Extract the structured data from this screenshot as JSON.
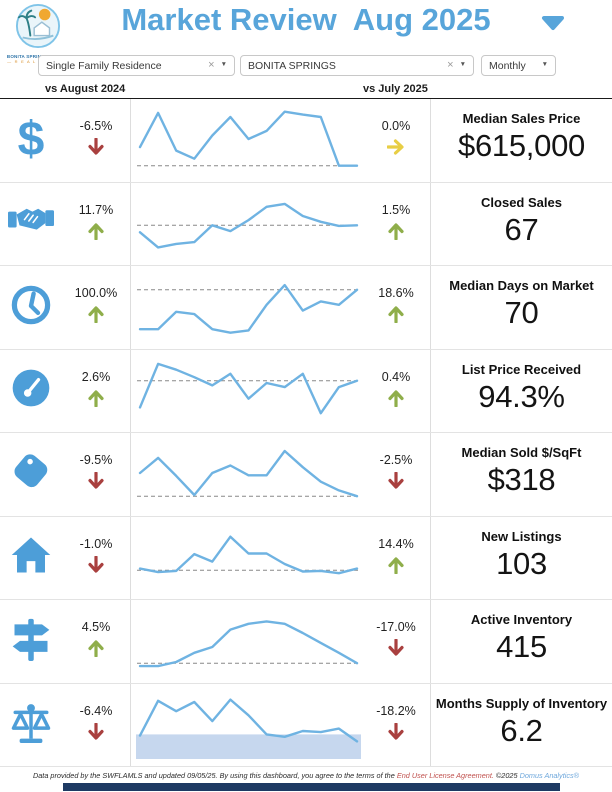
{
  "header": {
    "title": "Market Review  Aug 2025",
    "logo_org_line1": "BONITA SPRINGS ESTERO",
    "logo_org_line2": "— R E A L T O R S —"
  },
  "filters": {
    "property_type": {
      "value": "Single Family Residence",
      "clearable": true
    },
    "location": {
      "value": "BONITA SPRINGS",
      "clearable": true
    },
    "period": {
      "value": "Monthly",
      "clearable": false
    }
  },
  "columns": {
    "yoy_label": "vs August 2024",
    "mom_label": "vs July 2025"
  },
  "colors": {
    "accent_blue": "#58a5da",
    "icon_blue": "#4d9ed8",
    "spark_line": "#6fb3e2",
    "ref_gray": "#888888",
    "up_green": "#8fae4a",
    "down_red": "#a9403f",
    "flat_yellow": "#e8ce45",
    "band_blue": "#c6d7ee",
    "bottom_bar_navy": "#1e3a63",
    "link_red": "#c0504d",
    "link_blue": "#6fa8dc"
  },
  "rows": [
    {
      "icon": "dollar",
      "metric": "Median Sales Price",
      "value": "$615,000",
      "yoy": {
        "pct": "-6.5%",
        "dir": "down"
      },
      "mom": {
        "pct": "0.0%",
        "dir": "flat"
      },
      "spark": {
        "points": [
          0.36,
          0.95,
          0.3,
          0.16,
          0.56,
          0.88,
          0.5,
          0.64,
          0.97,
          0.92,
          0.88,
          0.04,
          0.04
        ],
        "ref": 0.04,
        "band": null
      }
    },
    {
      "icon": "handshake",
      "metric": "Closed Sales",
      "value": "67",
      "yoy": {
        "pct": "11.7%",
        "dir": "up"
      },
      "mom": {
        "pct": "1.5%",
        "dir": "up"
      },
      "spark": {
        "points": [
          0.34,
          0.08,
          0.14,
          0.17,
          0.46,
          0.36,
          0.55,
          0.78,
          0.83,
          0.62,
          0.52,
          0.45,
          0.46
        ],
        "ref": 0.46,
        "band": null
      }
    },
    {
      "icon": "clock",
      "metric": "Median Days on Market",
      "value": "70",
      "yoy": {
        "pct": "100.0%",
        "dir": "up"
      },
      "mom": {
        "pct": "18.6%",
        "dir": "up"
      },
      "spark": {
        "points": [
          0.1,
          0.1,
          0.4,
          0.36,
          0.1,
          0.04,
          0.08,
          0.52,
          0.86,
          0.42,
          0.58,
          0.52,
          0.78
        ],
        "ref": 0.78,
        "band": null
      }
    },
    {
      "icon": "gauge",
      "metric": "List Price Received",
      "value": "94.3%",
      "yoy": {
        "pct": "2.6%",
        "dir": "up"
      },
      "mom": {
        "pct": "0.4%",
        "dir": "up"
      },
      "spark": {
        "points": [
          0.2,
          0.95,
          0.85,
          0.72,
          0.58,
          0.78,
          0.35,
          0.62,
          0.55,
          0.78,
          0.1,
          0.55,
          0.66
        ],
        "ref": 0.66,
        "band": null
      }
    },
    {
      "icon": "tag",
      "metric": "Median Sold $/SqFt",
      "value": "$318",
      "yoy": {
        "pct": "-9.5%",
        "dir": "down"
      },
      "mom": {
        "pct": "-2.5%",
        "dir": "down"
      },
      "spark": {
        "points": [
          0.5,
          0.76,
          0.45,
          0.12,
          0.5,
          0.63,
          0.46,
          0.46,
          0.88,
          0.6,
          0.35,
          0.2,
          0.1
        ],
        "ref": 0.1,
        "band": null
      }
    },
    {
      "icon": "house",
      "metric": "New Listings",
      "value": "103",
      "yoy": {
        "pct": "-1.0%",
        "dir": "down"
      },
      "mom": {
        "pct": "14.4%",
        "dir": "up"
      },
      "spark": {
        "points": [
          0.3,
          0.24,
          0.26,
          0.55,
          0.42,
          0.85,
          0.56,
          0.56,
          0.38,
          0.25,
          0.26,
          0.22,
          0.3
        ],
        "ref": 0.27,
        "band": null
      }
    },
    {
      "icon": "signpost",
      "metric": "Active Inventory",
      "value": "415",
      "yoy": {
        "pct": "4.5%",
        "dir": "up"
      },
      "mom": {
        "pct": "-17.0%",
        "dir": "down"
      },
      "spark": {
        "points": [
          0.05,
          0.05,
          0.12,
          0.28,
          0.38,
          0.68,
          0.78,
          0.82,
          0.78,
          0.62,
          0.45,
          0.28,
          0.1
        ],
        "ref": 0.1,
        "band": null
      }
    },
    {
      "icon": "scales",
      "metric": "Months Supply of Inventory",
      "value": "6.2",
      "yoy": {
        "pct": "-6.4%",
        "dir": "down"
      },
      "mom": {
        "pct": "-18.2%",
        "dir": "down"
      },
      "spark": {
        "points": [
          0.3,
          0.9,
          0.72,
          0.88,
          0.55,
          0.92,
          0.65,
          0.32,
          0.28,
          0.38,
          0.36,
          0.42,
          0.2
        ],
        "ref": null,
        "band": 0.32
      }
    }
  ],
  "footer": {
    "text_before": "Data provided by the SWFLAMLS and updated 09/05/25.  By using this dashboard, you agree to the terms of the ",
    "link_eula": "End User License Agreement.",
    "text_mid": "  ©2025 ",
    "link_brand": "Domus Analytics®"
  }
}
